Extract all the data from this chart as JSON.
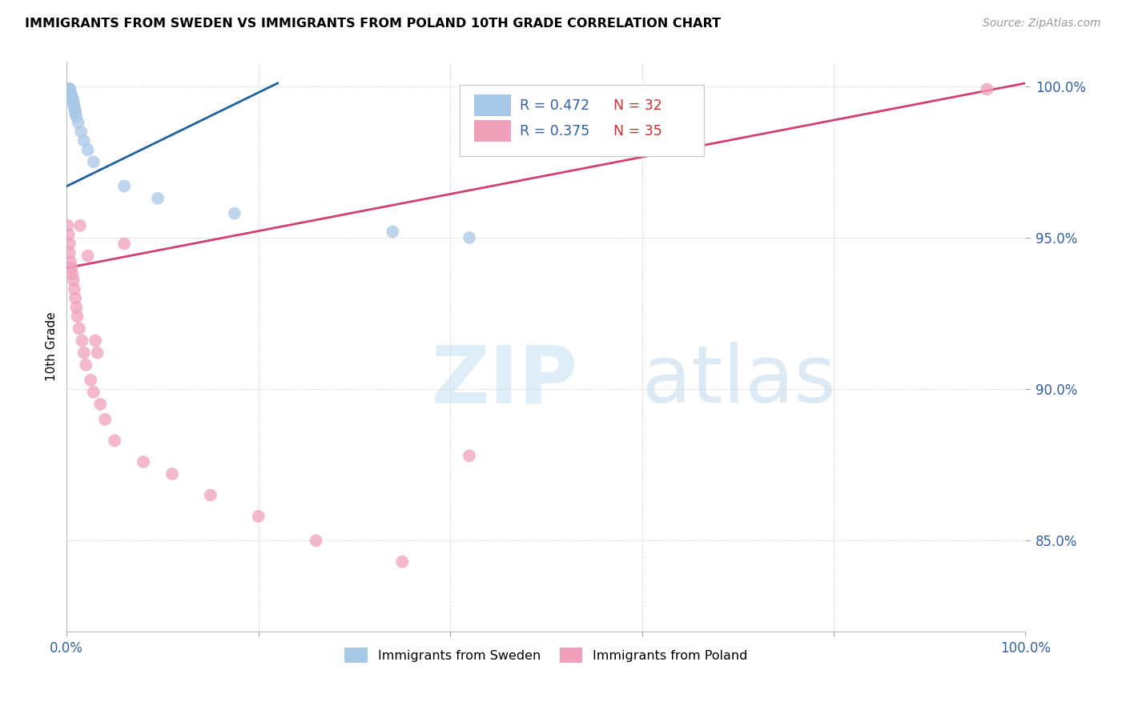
{
  "title": "IMMIGRANTS FROM SWEDEN VS IMMIGRANTS FROM POLAND 10TH GRADE CORRELATION CHART",
  "source": "Source: ZipAtlas.com",
  "ylabel": "10th Grade",
  "xlim": [
    0.0,
    1.0
  ],
  "ylim": [
    0.82,
    1.008
  ],
  "yticks": [
    0.85,
    0.9,
    0.95,
    1.0
  ],
  "ytick_labels": [
    "85.0%",
    "90.0%",
    "95.0%",
    "100.0%"
  ],
  "xticks": [
    0.0,
    0.2,
    0.4,
    0.6,
    0.8,
    1.0
  ],
  "xtick_labels": [
    "0.0%",
    "",
    "",
    "",
    "",
    "100.0%"
  ],
  "sweden_color": "#a8c8e8",
  "poland_color": "#f0a0b8",
  "sweden_line_color": "#2060a0",
  "poland_line_color": "#d04070",
  "R_sweden": 0.472,
  "N_sweden": 32,
  "R_poland": 0.375,
  "N_poland": 35,
  "sweden_line_x0": 0.0,
  "sweden_line_y0": 0.967,
  "sweden_line_x1": 0.22,
  "sweden_line_y1": 1.001,
  "poland_line_x0": 0.0,
  "poland_line_y0": 0.94,
  "poland_line_x1": 1.0,
  "poland_line_y1": 1.001,
  "sweden_points_x": [
    0.001,
    0.001,
    0.002,
    0.002,
    0.003,
    0.003,
    0.003,
    0.003,
    0.004,
    0.004,
    0.005,
    0.005,
    0.006,
    0.006,
    0.007,
    0.007,
    0.008,
    0.009,
    0.009,
    0.01,
    0.012,
    0.015,
    0.018,
    0.022,
    0.028,
    0.06,
    0.095,
    0.175,
    0.34,
    0.42
  ],
  "sweden_points_y": [
    0.999,
    0.999,
    0.999,
    0.999,
    0.999,
    0.999,
    0.999,
    0.999,
    0.998,
    0.998,
    0.997,
    0.997,
    0.996,
    0.996,
    0.995,
    0.994,
    0.993,
    0.992,
    0.991,
    0.99,
    0.988,
    0.985,
    0.982,
    0.979,
    0.975,
    0.967,
    0.963,
    0.958,
    0.952,
    0.95
  ],
  "poland_points_x": [
    0.001,
    0.002,
    0.003,
    0.003,
    0.004,
    0.005,
    0.006,
    0.007,
    0.008,
    0.009,
    0.01,
    0.011,
    0.013,
    0.014,
    0.016,
    0.018,
    0.02,
    0.022,
    0.025,
    0.028,
    0.03,
    0.032,
    0.035,
    0.04,
    0.05,
    0.06,
    0.08,
    0.11,
    0.15,
    0.2,
    0.26,
    0.35,
    0.42,
    0.96
  ],
  "poland_points_y": [
    0.954,
    0.951,
    0.948,
    0.945,
    0.942,
    0.94,
    0.938,
    0.936,
    0.933,
    0.93,
    0.927,
    0.924,
    0.92,
    0.954,
    0.916,
    0.912,
    0.908,
    0.944,
    0.903,
    0.899,
    0.916,
    0.912,
    0.895,
    0.89,
    0.883,
    0.948,
    0.876,
    0.872,
    0.865,
    0.858,
    0.85,
    0.843,
    0.878,
    0.999
  ],
  "background_color": "#ffffff",
  "grid_color": "#d8d8d8",
  "legend_color": "#3060a0",
  "legend_N_color": "#d03030"
}
